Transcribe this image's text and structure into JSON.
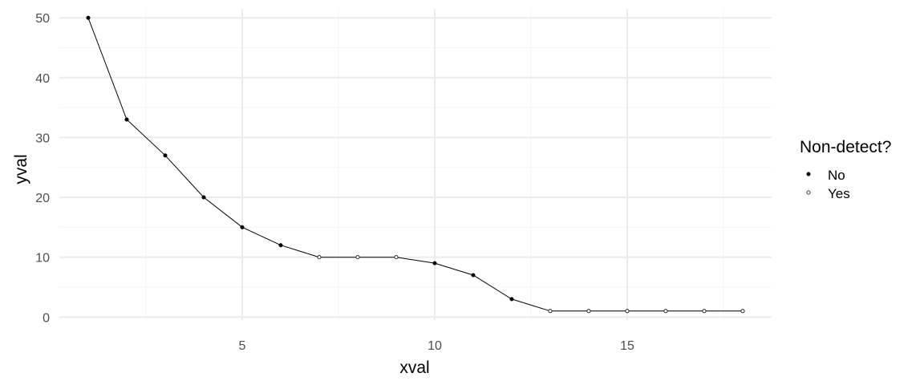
{
  "chart_data": {
    "type": "line",
    "xlabel": "xval",
    "ylabel": "yval",
    "xlim": [
      0.25,
      18.75
    ],
    "ylim": [
      -0.5,
      51.5
    ],
    "x_ticks": [
      5,
      10,
      15
    ],
    "x_minor_ticks": [
      2.5,
      7.5,
      12.5,
      17.5
    ],
    "y_ticks": [
      0,
      10,
      20,
      30,
      40,
      50
    ],
    "y_minor_ticks": [
      5,
      15,
      25,
      35,
      45
    ],
    "grid": true,
    "legend": {
      "title": "Non-detect?",
      "position": "right",
      "entries": [
        {
          "label": "No",
          "marker": "filled-circle"
        },
        {
          "label": "Yes",
          "marker": "open-circle"
        }
      ]
    },
    "points": [
      {
        "x": 1,
        "y": 50,
        "nondetect": "No"
      },
      {
        "x": 2,
        "y": 33,
        "nondetect": "No"
      },
      {
        "x": 3,
        "y": 27,
        "nondetect": "No"
      },
      {
        "x": 4,
        "y": 20,
        "nondetect": "No"
      },
      {
        "x": 5,
        "y": 15,
        "nondetect": "No"
      },
      {
        "x": 6,
        "y": 12,
        "nondetect": "No"
      },
      {
        "x": 7,
        "y": 10,
        "nondetect": "Yes"
      },
      {
        "x": 8,
        "y": 10,
        "nondetect": "Yes"
      },
      {
        "x": 9,
        "y": 10,
        "nondetect": "Yes"
      },
      {
        "x": 10,
        "y": 9,
        "nondetect": "No"
      },
      {
        "x": 11,
        "y": 7,
        "nondetect": "No"
      },
      {
        "x": 12,
        "y": 3,
        "nondetect": "No"
      },
      {
        "x": 13,
        "y": 1,
        "nondetect": "Yes"
      },
      {
        "x": 14,
        "y": 1,
        "nondetect": "Yes"
      },
      {
        "x": 15,
        "y": 1,
        "nondetect": "Yes"
      },
      {
        "x": 16,
        "y": 1,
        "nondetect": "Yes"
      },
      {
        "x": 17,
        "y": 1,
        "nondetect": "Yes"
      },
      {
        "x": 18,
        "y": 1,
        "nondetect": "Yes"
      }
    ],
    "colors": {
      "line": "#000000",
      "point": "#000000",
      "grid_major": "#ebebeb",
      "grid_minor": "#f5f5f5"
    }
  }
}
